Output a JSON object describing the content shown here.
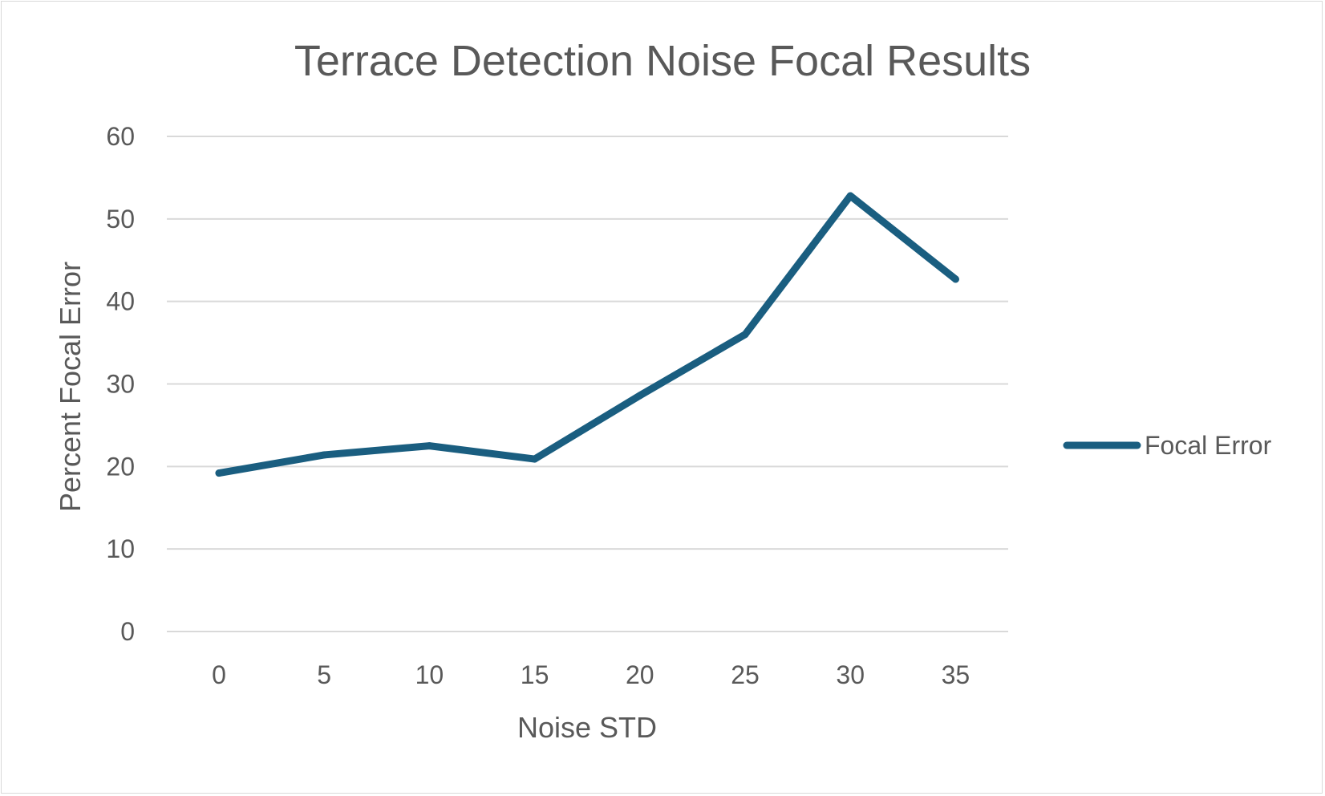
{
  "chart_data": {
    "type": "line",
    "title": "Terrace Detection Noise Focal Results",
    "xlabel": "Noise STD",
    "ylabel": "Percent Focal  Error",
    "categories": [
      "0",
      "5",
      "10",
      "15",
      "20",
      "25",
      "30",
      "35"
    ],
    "x": [
      0,
      5,
      10,
      15,
      20,
      25,
      30,
      35
    ],
    "y_ticks": [
      "0",
      "10",
      "20",
      "30",
      "40",
      "50",
      "60"
    ],
    "ylim": [
      0,
      60
    ],
    "grid": "horizontal",
    "legend_position": "right",
    "series": [
      {
        "name": "Focal Error",
        "color": "#1a5e80",
        "values": [
          19.2,
          21.4,
          22.5,
          20.9,
          28.6,
          36.0,
          52.8,
          42.7
        ]
      }
    ]
  },
  "colors": {
    "gridline": "#d9d9d9",
    "text": "#595959",
    "frame": "#d9d9d9"
  }
}
